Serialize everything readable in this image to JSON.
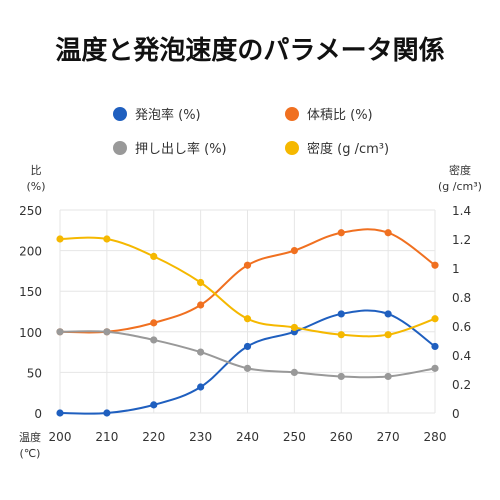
{
  "chart_data": {
    "type": "line",
    "title": "温度と発泡速度のパラメータ関係",
    "x": [
      200,
      210,
      220,
      230,
      240,
      250,
      260,
      270,
      280
    ],
    "xlabel_line1": "温度",
    "xlabel_line2": "(℃)",
    "ylabel_left_line1": "比",
    "ylabel_left_line2": "(%)",
    "ylabel_right_line1": "密度",
    "ylabel_right_line2": "(g /cm³)",
    "ylim_left": [
      0,
      250
    ],
    "ylim_right": [
      0,
      1.4
    ],
    "yticks_left": [
      "0",
      "50",
      "100",
      "150",
      "200",
      "250"
    ],
    "yticks_right": [
      "0",
      "0.2",
      "0.4",
      "0.6",
      "0.8",
      "1",
      "1.2",
      "1.4"
    ],
    "xticks": [
      "200",
      "210",
      "220",
      "230",
      "240",
      "250",
      "260",
      "270",
      "280"
    ],
    "grid": true,
    "legend_position": "top",
    "series": [
      {
        "name": "発泡率 (%)",
        "axis": "left",
        "color": "#1f5fbf",
        "values": [
          0,
          0,
          10,
          32,
          82,
          100,
          122,
          122,
          82
        ]
      },
      {
        "name": "体積比 (%)",
        "axis": "left",
        "color": "#f07020",
        "values": [
          100,
          100,
          111,
          133,
          182,
          200,
          222,
          222,
          182
        ]
      },
      {
        "name": "押し出し率 (%)",
        "axis": "left",
        "color": "#999999",
        "values": [
          100,
          100,
          90,
          75,
          55,
          50,
          45,
          45,
          55
        ]
      },
      {
        "name": "密度 (g /cm³)",
        "axis": "right",
        "color": "#f5b800",
        "values": [
          1.2,
          1.2,
          1.08,
          0.9,
          0.65,
          0.59,
          0.54,
          0.54,
          0.65
        ]
      }
    ]
  }
}
